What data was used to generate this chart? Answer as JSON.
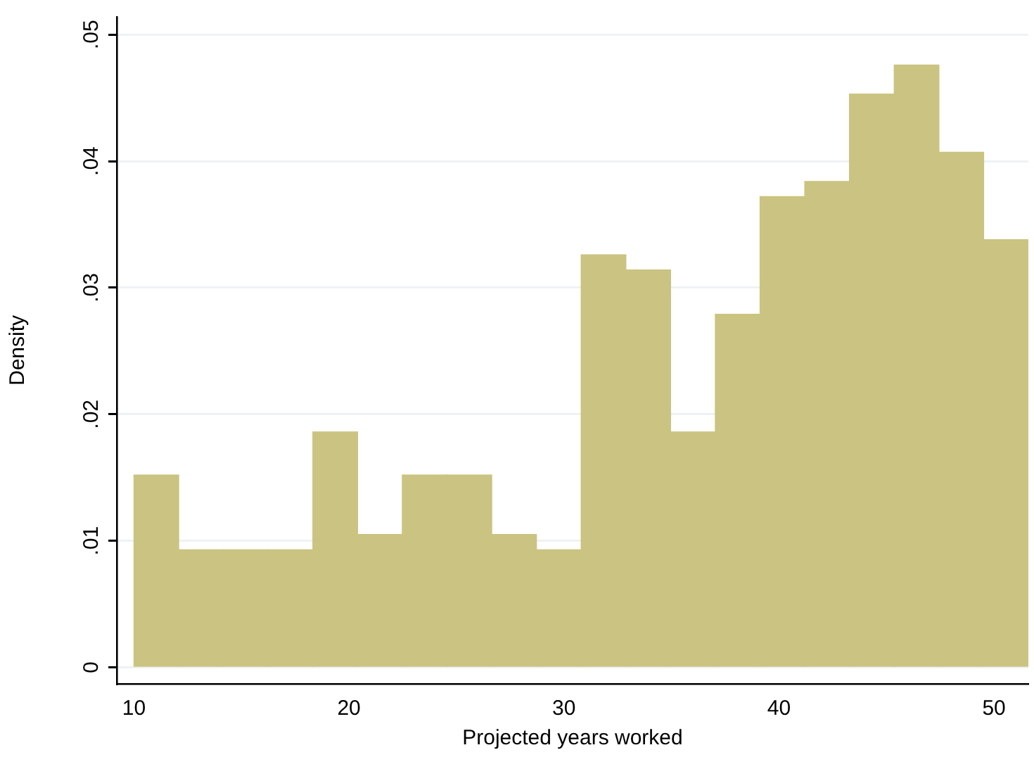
{
  "chart_data": {
    "type": "histogram",
    "xlabel": "Projected years worked",
    "ylabel": "Density",
    "bins": [
      10,
      12.08,
      14.16,
      16.24,
      18.32,
      20.4,
      22.48,
      24.56,
      26.64,
      28.72,
      30.8,
      32.88,
      34.96,
      37.04,
      39.12,
      41.2,
      43.28,
      45.36,
      47.44,
      49.52,
      51.6
    ],
    "values": [
      0.0152,
      0.0093,
      0.0093,
      0.0093,
      0.0186,
      0.0105,
      0.0152,
      0.0152,
      0.0105,
      0.0093,
      0.0326,
      0.0314,
      0.0186,
      0.0279,
      0.0372,
      0.0384,
      0.0453,
      0.0476,
      0.0407,
      0.0338
    ],
    "color": "#cbc381",
    "xlim": [
      9.2,
      51.6
    ],
    "xticks": [
      10,
      20,
      30,
      40,
      50
    ],
    "ylim": [
      -0.0013,
      0.0514
    ],
    "yticks": [
      {
        "value": 0,
        "label": "0"
      },
      {
        "value": 0.01,
        "label": ".01"
      },
      {
        "value": 0.02,
        "label": ".02"
      },
      {
        "value": 0.03,
        "label": ".03"
      },
      {
        "value": 0.04,
        "label": ".04"
      },
      {
        "value": 0.05,
        "label": ".05"
      }
    ],
    "grid": "y"
  }
}
